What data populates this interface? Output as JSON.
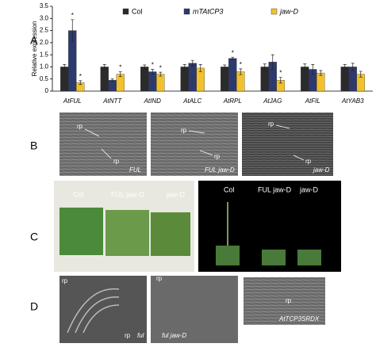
{
  "chart_data": {
    "type": "bar",
    "y_label": "Relative expression",
    "categories": [
      "AtFUL",
      "AtNTT",
      "AtIND",
      "AtALC",
      "AtRPL",
      "AtJAG",
      "AtFIL",
      "AtYAB3"
    ],
    "series": [
      {
        "name": "Col",
        "color": "#2b2b2b",
        "values": [
          1.0,
          1.0,
          1.0,
          1.0,
          1.0,
          1.0,
          1.0,
          1.0
        ],
        "errors": [
          0.1,
          0.1,
          0.08,
          0.1,
          0.08,
          0.12,
          0.12,
          0.1
        ],
        "marks": [
          null,
          null,
          null,
          null,
          null,
          null,
          null,
          null
        ]
      },
      {
        "name": "mTAtCP3",
        "color": "#2e3a6e",
        "values": [
          2.5,
          0.45,
          0.8,
          1.15,
          1.35,
          1.2,
          0.9,
          1.0
        ],
        "errors": [
          0.45,
          0.05,
          0.1,
          0.12,
          0.05,
          0.3,
          0.2,
          0.15
        ],
        "marks": [
          "*",
          null,
          "*",
          null,
          "*",
          null,
          null,
          null
        ]
      },
      {
        "name": "jaw-D",
        "color": "#f2c12e",
        "values": [
          0.35,
          0.7,
          0.7,
          0.95,
          0.8,
          0.45,
          0.75,
          0.7
        ],
        "errors": [
          0.08,
          0.1,
          0.08,
          0.15,
          0.12,
          0.12,
          0.1,
          0.12
        ],
        "marks": [
          "*",
          "*",
          "*",
          null,
          "*",
          "*",
          null,
          null
        ]
      }
    ],
    "ylim": [
      0,
      3.5
    ],
    "yticks": [
      0,
      0.5,
      {
        "value": 1,
        "label": "1.0"
      },
      1.5,
      {
        "value": 2,
        "label": "2.0"
      },
      2.5,
      {
        "value": 3,
        "label": "3.0"
      },
      3.5
    ],
    "legend": "top"
  },
  "panel_b": {
    "label_a": "A",
    "label": "B",
    "images": [
      {
        "caption": "FUL",
        "annotations": [
          "rp",
          "rp"
        ]
      },
      {
        "caption": "FUL jaw-D",
        "annotations": [
          "rp",
          "rp"
        ]
      },
      {
        "caption": "jaw-D",
        "annotations": [
          "rp",
          "rp"
        ]
      }
    ]
  },
  "panel_c": {
    "label": "C",
    "images": [
      {
        "annotations": [
          "Col",
          "FUL jaw-D",
          "jaw-D"
        ]
      },
      {
        "annotations": [
          "Col",
          "FUL jaw-D",
          "jaw-D"
        ]
      }
    ]
  },
  "panel_d": {
    "label": "D",
    "images": [
      {
        "caption": "ful",
        "annotations": [
          "rp",
          "rp"
        ]
      },
      {
        "caption": "ful jaw-D",
        "annotations": [
          "rp"
        ]
      },
      {
        "caption": "AtTCP3SRDX",
        "annotations": [
          "rp"
        ]
      }
    ]
  }
}
